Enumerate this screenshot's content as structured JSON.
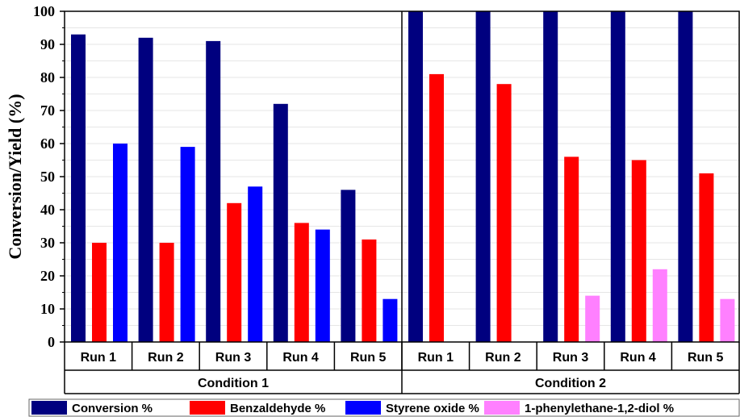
{
  "chart_data": {
    "type": "bar",
    "title": "",
    "xlabel": "",
    "ylabel": "Conversion/Yield (%)",
    "ylim": [
      0,
      100
    ],
    "yticks": [
      0,
      10,
      20,
      30,
      40,
      50,
      60,
      70,
      80,
      90,
      100
    ],
    "grid": true,
    "legend_position": "bottom",
    "groups": [
      "Condition 1",
      "Condition 2"
    ],
    "categories": [
      "Run 1",
      "Run 2",
      "Run 3",
      "Run 4",
      "Run 5",
      "Run 1",
      "Run 2",
      "Run 3",
      "Run 4",
      "Run 5"
    ],
    "series": [
      {
        "name": "Conversion %",
        "color": "#00007f",
        "values": [
          93,
          92,
          91,
          72,
          46,
          100,
          100,
          100,
          100,
          100
        ]
      },
      {
        "name": "Benzaldehyde %",
        "color": "#ff0000",
        "values": [
          30,
          30,
          42,
          36,
          31,
          81,
          78,
          56,
          55,
          51
        ]
      },
      {
        "name": "Styrene oxide %",
        "color": "#0000ff",
        "values": [
          60,
          59,
          47,
          34,
          13,
          null,
          null,
          null,
          null,
          null
        ]
      },
      {
        "name": "1-phenylethane-1,2-diol %",
        "color": "#ff80ff",
        "values": [
          null,
          null,
          null,
          null,
          null,
          null,
          null,
          14,
          22,
          13
        ]
      }
    ]
  }
}
